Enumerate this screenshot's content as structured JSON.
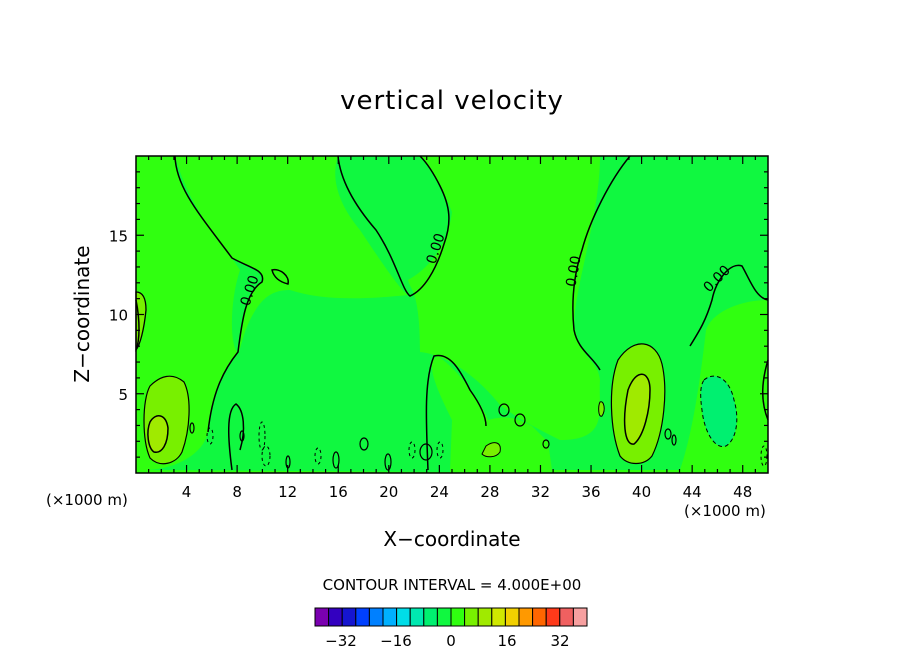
{
  "chart_data": {
    "type": "heatmap",
    "title": "vertical velocity",
    "xlabel": "X−coordinate",
    "ylabel": "Z−coordinate",
    "x_unit_left": "(×1000 m)",
    "x_unit_right": "(×1000 m)",
    "xlim": [
      0,
      50
    ],
    "ylim": [
      0,
      20
    ],
    "x_ticks": [
      4,
      8,
      12,
      16,
      20,
      24,
      28,
      32,
      36,
      40,
      44,
      48
    ],
    "y_ticks": [
      5,
      10,
      15
    ],
    "contour_labels": [
      "0.00",
      "0.00",
      "0.00",
      "0.00"
    ],
    "contour_interval": "CONTOUR INTERVAL = 4.000E+00",
    "colorbar": {
      "tick_labels": [
        "−32",
        "−16",
        "0",
        "16",
        "32"
      ],
      "colors": [
        "#7a00b0",
        "#3300c0",
        "#1515d0",
        "#0040ff",
        "#0080ff",
        "#00b0ff",
        "#00dde8",
        "#00e8b0",
        "#00f070",
        "#10f840",
        "#30ff10",
        "#78f000",
        "#a0ea00",
        "#d0e800",
        "#f2d000",
        "#ff9900",
        "#ff6600",
        "#ff3a1a",
        "#f06060",
        "#f7a0a0"
      ]
    }
  }
}
